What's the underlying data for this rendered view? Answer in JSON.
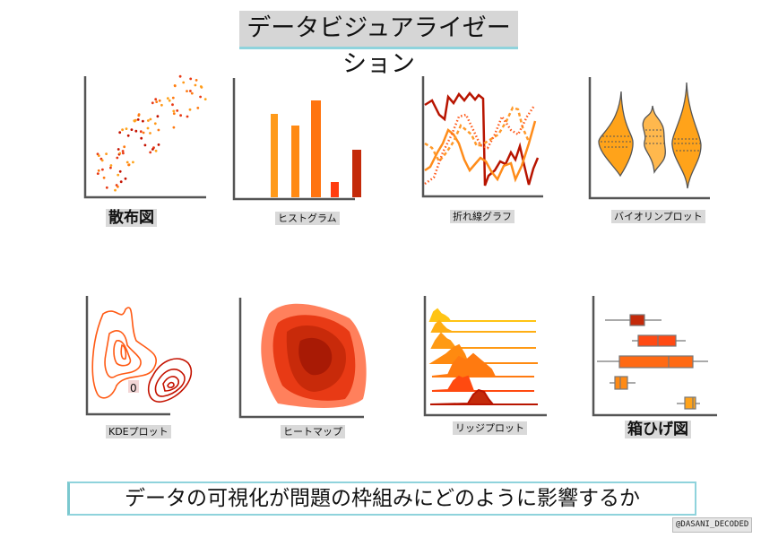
{
  "title": "データビジュアライゼーション",
  "charts": [
    {
      "label": "散布図"
    },
    {
      "label": "ヒストグラム"
    },
    {
      "label": "折れ線グラフ"
    },
    {
      "label": "バイオリンプロット"
    },
    {
      "label": "KDEプロット"
    },
    {
      "label": "ヒートマップ"
    },
    {
      "label": "リッジプロット"
    },
    {
      "label": "箱ひげ図"
    }
  ],
  "kde_marker": "0",
  "caption": "データの可視化が問題の枠組みにどのように影響するか",
  "credit": "@DASANI_DECODED",
  "colors": {
    "axis": "#555555",
    "orange": "#ff8c1a",
    "dark_red": "#b81400",
    "red": "#e8380d",
    "accent": "#8fd3dc"
  }
}
